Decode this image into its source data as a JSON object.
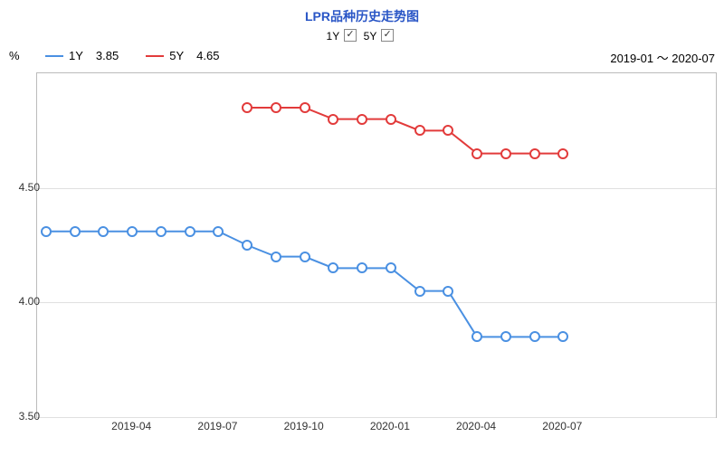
{
  "title": "LPR品种历史走势图",
  "toggles": {
    "label1": "1Y",
    "label2": "5Y"
  },
  "header": {
    "percentLabel": "%",
    "dateRange": "2019-01 ～ 2020-07",
    "legend": [
      {
        "name": "1Y",
        "value": "3.85",
        "color": "#4a90e2"
      },
      {
        "name": "5Y",
        "value": "4.65",
        "color": "#e23b3b"
      }
    ]
  },
  "chart": {
    "type": "line",
    "background_color": "#ffffff",
    "grid_color": "#e0e0e0",
    "border_color": "#bbbbbb",
    "ylim": [
      3.5,
      5.0
    ],
    "yticks": [
      3.5,
      4.0,
      4.5
    ],
    "x_count": 24,
    "xticks": [
      {
        "index": 3,
        "label": "2019-04"
      },
      {
        "index": 6,
        "label": "2019-07"
      },
      {
        "index": 9,
        "label": "2019-10"
      },
      {
        "index": 12,
        "label": "2020-01"
      },
      {
        "index": 15,
        "label": "2020-04"
      },
      {
        "index": 18,
        "label": "2020-07"
      }
    ],
    "line_width": 2,
    "marker_radius": 4,
    "series": [
      {
        "name": "1Y",
        "color": "#4a90e2",
        "start_index": 0,
        "values": [
          4.31,
          4.31,
          4.31,
          4.31,
          4.31,
          4.31,
          4.31,
          4.25,
          4.2,
          4.2,
          4.15,
          4.15,
          4.15,
          4.05,
          4.05,
          3.85,
          3.85,
          3.85,
          3.85
        ]
      },
      {
        "name": "5Y",
        "color": "#e23b3b",
        "start_index": 7,
        "values": [
          4.85,
          4.85,
          4.85,
          4.8,
          4.8,
          4.8,
          4.75,
          4.75,
          4.65,
          4.65,
          4.65,
          4.65
        ]
      }
    ]
  }
}
